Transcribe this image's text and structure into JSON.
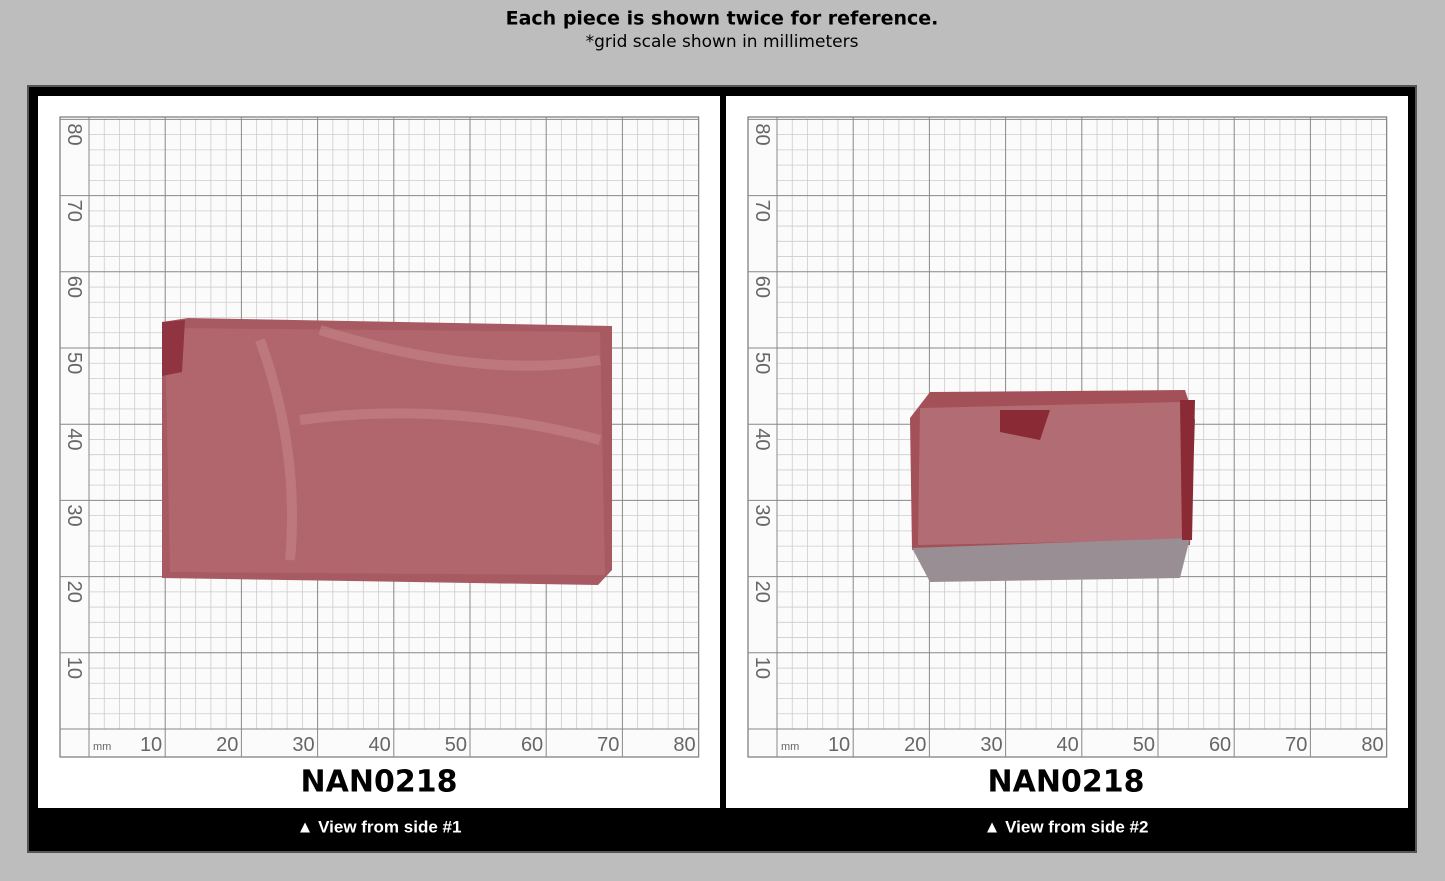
{
  "header": {
    "title": "Each piece is shown twice for reference.",
    "subtitle": "*grid scale shown in millimeters"
  },
  "grid": {
    "unit": "mm",
    "x_labels": [
      "10",
      "20",
      "30",
      "40",
      "50",
      "60",
      "70",
      "80"
    ],
    "y_labels": [
      "10",
      "20",
      "30",
      "40",
      "50",
      "60",
      "70",
      "80"
    ]
  },
  "panels": [
    {
      "label": "NAN0218",
      "caption": "▲ View from side #1"
    },
    {
      "label": "NAN0218",
      "caption": "▲ View from side #2"
    }
  ]
}
